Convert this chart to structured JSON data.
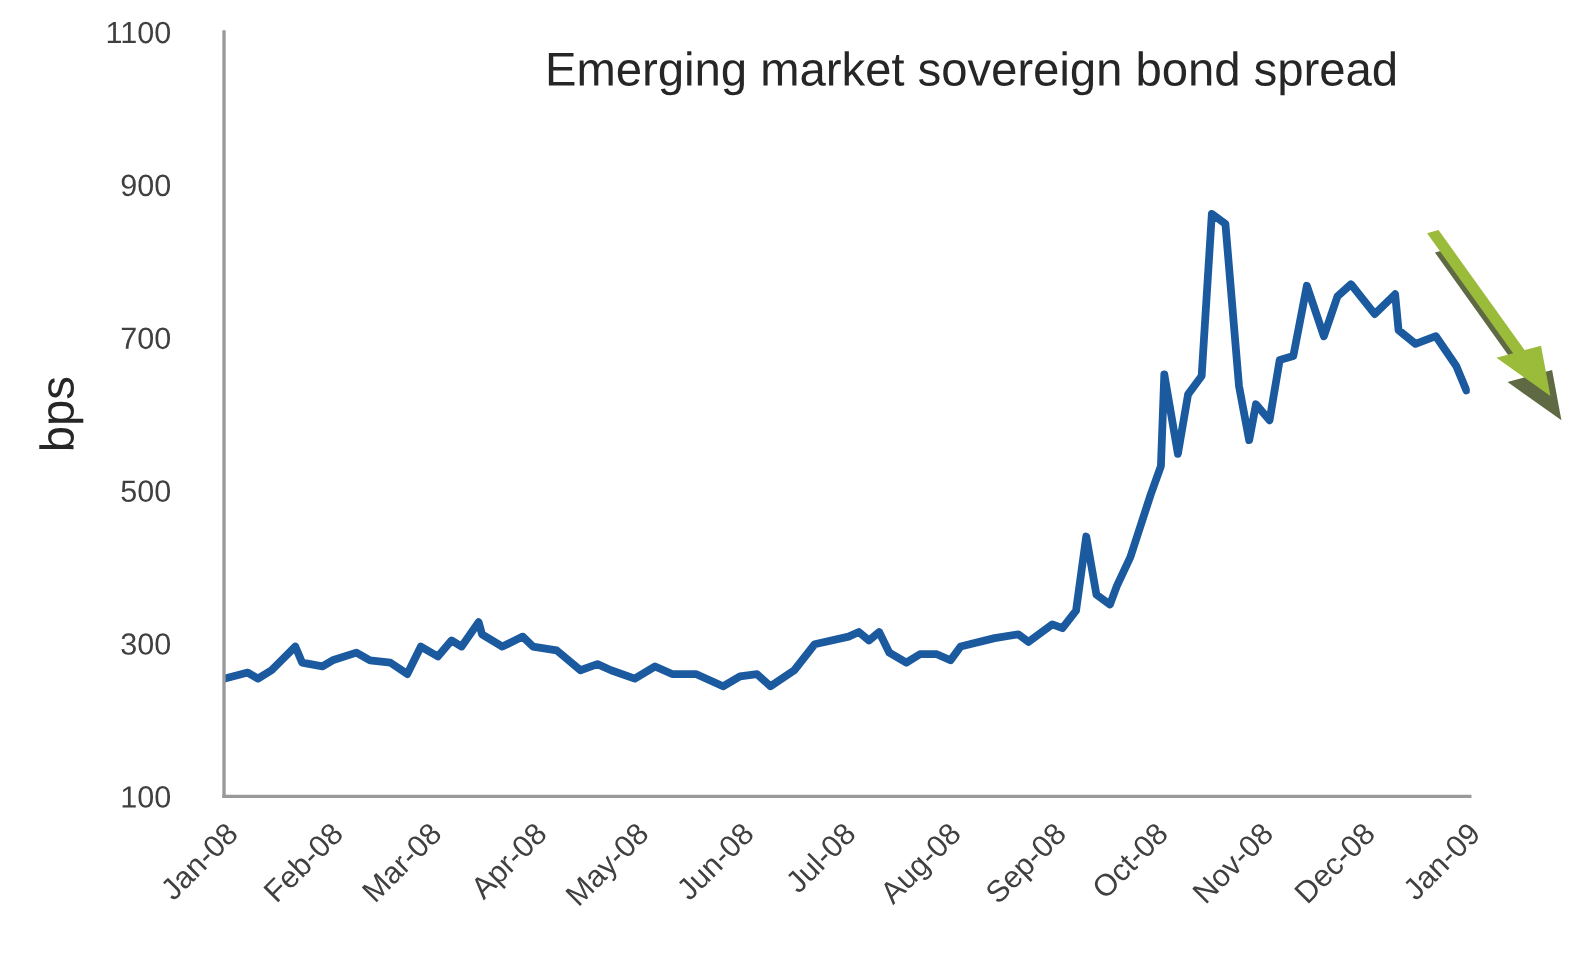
{
  "chart_data": {
    "type": "line",
    "title": "Emerging market sovereign bond spread",
    "ylabel": "bps",
    "x": [
      "2008-01-01",
      "2008-01-08",
      "2008-01-11",
      "2008-01-15",
      "2008-01-22",
      "2008-01-24",
      "2008-01-30",
      "2008-02-02",
      "2008-02-09",
      "2008-02-13",
      "2008-02-19",
      "2008-02-24",
      "2008-02-28",
      "2008-03-04",
      "2008-03-08",
      "2008-03-11",
      "2008-03-16",
      "2008-03-17",
      "2008-03-23",
      "2008-03-29",
      "2008-04-01",
      "2008-04-08",
      "2008-04-15",
      "2008-04-20",
      "2008-04-24",
      "2008-05-01",
      "2008-05-07",
      "2008-05-12",
      "2008-05-19",
      "2008-05-27",
      "2008-06-01",
      "2008-06-06",
      "2008-06-10",
      "2008-06-17",
      "2008-06-23",
      "2008-07-03",
      "2008-07-06",
      "2008-07-09",
      "2008-07-12",
      "2008-07-15",
      "2008-07-20",
      "2008-07-24",
      "2008-07-29",
      "2008-08-02",
      "2008-08-05",
      "2008-08-15",
      "2008-08-22",
      "2008-08-25",
      "2008-09-01",
      "2008-09-04",
      "2008-09-08",
      "2008-09-11",
      "2008-09-14",
      "2008-09-18",
      "2008-09-20",
      "2008-09-24",
      "2008-09-30",
      "2008-10-03",
      "2008-10-04",
      "2008-10-08",
      "2008-10-11",
      "2008-10-15",
      "2008-10-18",
      "2008-10-22",
      "2008-10-26",
      "2008-10-29",
      "2008-10-31",
      "2008-11-04",
      "2008-11-07",
      "2008-11-11",
      "2008-11-15",
      "2008-11-20",
      "2008-11-24",
      "2008-11-28",
      "2008-12-05",
      "2008-12-11",
      "2008-12-12",
      "2008-12-17",
      "2008-12-23",
      "2008-12-29",
      "2009-01-01"
    ],
    "series": [
      {
        "color": "#1b5a9e",
        "values": [
          254,
          262,
          254,
          265,
          296,
          275,
          270,
          278,
          288,
          278,
          275,
          260,
          296,
          283,
          304,
          296,
          328,
          312,
          296,
          309,
          296,
          291,
          265,
          273,
          265,
          254,
          270,
          260,
          260,
          244,
          257,
          260,
          244,
          265,
          299,
          309,
          315,
          304,
          315,
          288,
          275,
          286,
          286,
          278,
          296,
          307,
          312,
          302,
          325,
          320,
          343,
          440,
          364,
          351,
          375,
          413,
          495,
          532,
          652,
          548,
          626,
          650,
          862,
          849,
          637,
          566,
          613,
          592,
          671,
          676,
          768,
          702,
          754,
          770,
          731,
          757,
          710,
          692,
          702,
          663,
          631
        ]
      }
    ],
    "xlim": [
      "2008-01-01",
      "2009-01-02"
    ],
    "xticks": [
      {
        "value": "2008-01-01",
        "label": "Jan-08"
      },
      {
        "value": "2008-02-01",
        "label": "Feb-08"
      },
      {
        "value": "2008-03-01",
        "label": "Mar-08"
      },
      {
        "value": "2008-04-01",
        "label": "Apr-08"
      },
      {
        "value": "2008-05-01",
        "label": "May-08"
      },
      {
        "value": "2008-06-01",
        "label": "Jun-08"
      },
      {
        "value": "2008-07-01",
        "label": "Jul-08"
      },
      {
        "value": "2008-08-01",
        "label": "Aug-08"
      },
      {
        "value": "2008-09-01",
        "label": "Sep-08"
      },
      {
        "value": "2008-10-01",
        "label": "Oct-08"
      },
      {
        "value": "2008-11-01",
        "label": "Nov-08"
      },
      {
        "value": "2008-12-01",
        "label": "Dec-08"
      },
      {
        "value": "2009-01-01",
        "label": "Jan-09"
      }
    ],
    "ylim": [
      100,
      1100
    ],
    "yticks": [
      100,
      300,
      500,
      700,
      900,
      1100
    ],
    "grid": false,
    "legend": false,
    "marker": "none",
    "line_style": "solid"
  }
}
